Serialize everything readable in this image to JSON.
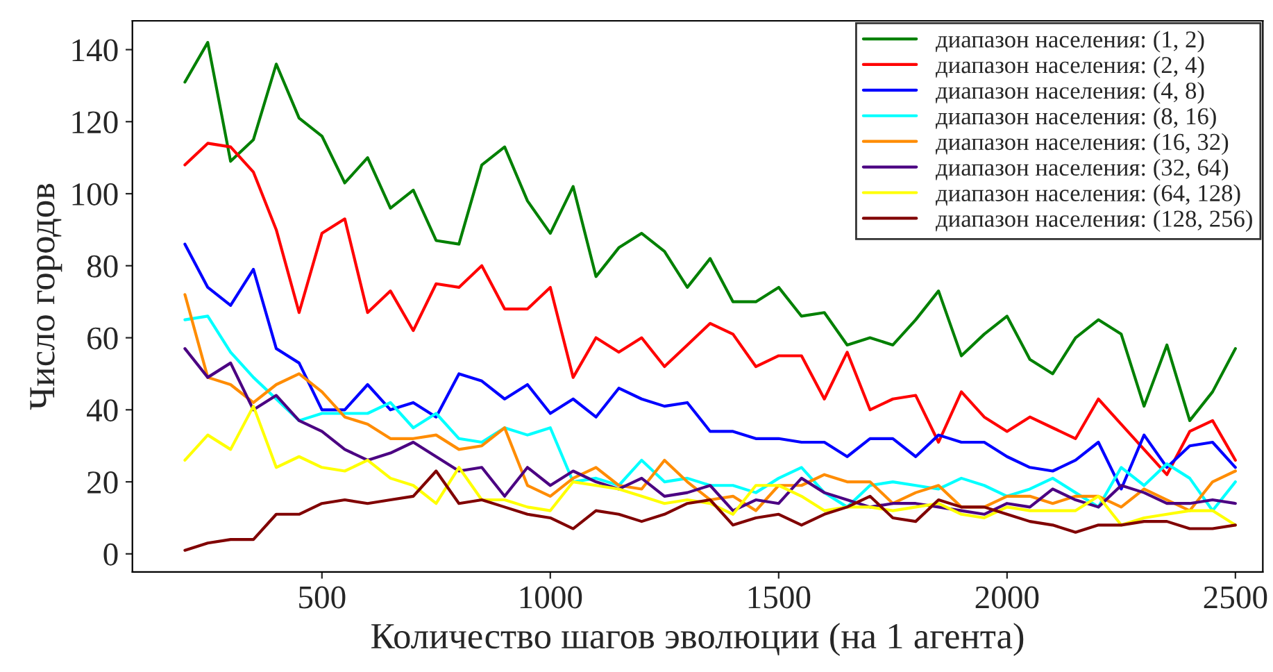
{
  "chart_data": {
    "type": "line",
    "xlabel": "Количество шагов эволюции (на 1 агента)",
    "ylabel": "Число городов",
    "x": [
      200,
      250,
      300,
      350,
      400,
      450,
      500,
      550,
      600,
      650,
      700,
      750,
      800,
      850,
      900,
      950,
      1000,
      1050,
      1100,
      1150,
      1200,
      1250,
      1300,
      1350,
      1400,
      1450,
      1500,
      1550,
      1600,
      1650,
      1700,
      1750,
      1800,
      1850,
      1900,
      1950,
      2000,
      2050,
      2100,
      2150,
      2200,
      2250,
      2300,
      2350,
      2400,
      2450,
      2500
    ],
    "series": [
      {
        "name": "диапазон населения: (1, 2)",
        "color": "#008000",
        "values": [
          131,
          142,
          109,
          115,
          136,
          121,
          116,
          103,
          110,
          96,
          101,
          87,
          86,
          108,
          113,
          98,
          89,
          102,
          77,
          85,
          89,
          84,
          74,
          82,
          70,
          70,
          74,
          66,
          67,
          58,
          60,
          58,
          65,
          73,
          55,
          61,
          66,
          54,
          50,
          60,
          65,
          61,
          41,
          58,
          37,
          45,
          57
        ]
      },
      {
        "name": "диапазон населения: (2, 4)",
        "color": "#ff0000",
        "values": [
          108,
          114,
          113,
          106,
          90,
          67,
          89,
          93,
          67,
          73,
          62,
          75,
          74,
          80,
          68,
          68,
          74,
          49,
          60,
          56,
          60,
          52,
          58,
          64,
          61,
          52,
          55,
          55,
          43,
          56,
          40,
          43,
          44,
          31,
          45,
          38,
          34,
          38,
          35,
          32,
          43,
          36,
          29,
          22,
          34,
          37,
          26
        ]
      },
      {
        "name": "диапазон населения: (4, 8)",
        "color": "#0000ff",
        "values": [
          86,
          74,
          69,
          79,
          57,
          53,
          40,
          40,
          47,
          40,
          42,
          38,
          50,
          48,
          43,
          47,
          39,
          43,
          38,
          46,
          43,
          41,
          42,
          34,
          34,
          32,
          32,
          31,
          31,
          27,
          32,
          32,
          27,
          33,
          31,
          31,
          27,
          24,
          23,
          26,
          31,
          18,
          33,
          24,
          30,
          31,
          24
        ]
      },
      {
        "name": "диапазон населения: (8, 16)",
        "color": "#00ffff",
        "values": [
          65,
          66,
          56,
          49,
          43,
          37,
          39,
          39,
          39,
          42,
          35,
          39,
          32,
          31,
          35,
          33,
          35,
          20,
          21,
          19,
          26,
          20,
          21,
          19,
          19,
          17,
          21,
          24,
          17,
          13,
          19,
          20,
          19,
          18,
          21,
          19,
          16,
          18,
          21,
          17,
          13,
          24,
          19,
          25,
          21,
          12,
          20
        ]
      },
      {
        "name": "диапазон населения: (16, 32)",
        "color": "#ff8c00",
        "values": [
          72,
          49,
          47,
          42,
          47,
          50,
          45,
          38,
          36,
          32,
          32,
          33,
          29,
          30,
          35,
          19,
          16,
          21,
          24,
          19,
          18,
          26,
          20,
          15,
          16,
          12,
          19,
          19,
          22,
          20,
          20,
          14,
          17,
          19,
          13,
          13,
          16,
          16,
          14,
          16,
          16,
          13,
          18,
          15,
          12,
          20,
          23
        ]
      },
      {
        "name": "диапазон населения: (32, 64)",
        "color": "#4b0082",
        "values": [
          57,
          49,
          53,
          40,
          44,
          37,
          34,
          29,
          26,
          28,
          31,
          27,
          23,
          24,
          16,
          24,
          19,
          23,
          20,
          18,
          21,
          16,
          17,
          19,
          12,
          15,
          14,
          21,
          17,
          15,
          13,
          14,
          14,
          13,
          12,
          11,
          14,
          13,
          18,
          15,
          13,
          19,
          17,
          14,
          14,
          15,
          14
        ]
      },
      {
        "name": "диапазон населения: (64, 128)",
        "color": "#ffff00",
        "values": [
          26,
          33,
          29,
          41,
          24,
          27,
          24,
          23,
          26,
          21,
          19,
          14,
          24,
          15,
          15,
          13,
          12,
          20,
          19,
          18,
          16,
          14,
          15,
          14,
          11,
          19,
          19,
          16,
          12,
          13,
          13,
          12,
          13,
          14,
          11,
          10,
          13,
          12,
          12,
          12,
          16,
          8,
          10,
          11,
          12,
          12,
          8
        ]
      },
      {
        "name": "диапазон населения: (128, 256)",
        "color": "#800000",
        "values": [
          1,
          3,
          4,
          4,
          11,
          11,
          14,
          15,
          14,
          15,
          16,
          23,
          14,
          15,
          13,
          11,
          10,
          7,
          12,
          11,
          9,
          11,
          14,
          15,
          8,
          10,
          11,
          8,
          11,
          13,
          16,
          10,
          9,
          15,
          13,
          13,
          11,
          9,
          8,
          6,
          8,
          8,
          9,
          9,
          7,
          7,
          8
        ]
      }
    ],
    "xlim": [
      85,
      2560
    ],
    "ylim": [
      -5,
      148
    ],
    "xticks": [
      500,
      1000,
      1500,
      2000,
      2500
    ],
    "yticks": [
      0,
      20,
      40,
      60,
      80,
      100,
      120,
      140
    ],
    "grid": false,
    "legend": "top right"
  }
}
